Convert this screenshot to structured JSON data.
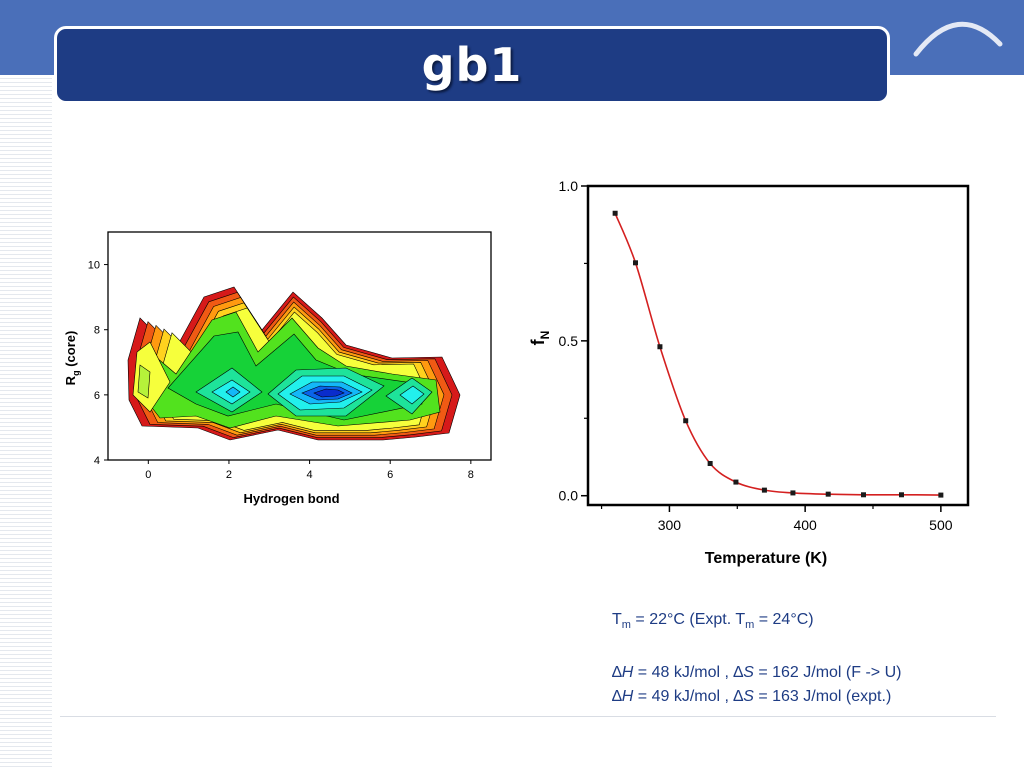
{
  "slide": {
    "title": "gb1",
    "colors": {
      "band": "#4a6fb9",
      "title_box": "#1e3c84",
      "text": "#1e3c84",
      "curve": "#d42020"
    }
  },
  "notes": {
    "tm_line": {
      "t": "T",
      "sub": "m",
      "mid": " = 22°C (Expt. T",
      "sub2": "m",
      "end": " = 24°C)"
    },
    "line1": {
      "d1": "∆",
      "h": "H",
      "a": " = 48 kJ/mol , ",
      "d2": "∆",
      "s": "S",
      "b": " = 162 J/mol (F -> U)"
    },
    "line2": {
      "d1": "∆",
      "h": "H",
      "a": " = 49 kJ/mol , ",
      "d2": "∆",
      "s": "S",
      "b": " = 163 J/mol (expt.)"
    }
  },
  "chart_data": [
    {
      "type": "contour",
      "xlabel": "Hydrogen bond",
      "ylabel": "R",
      "ylabel_sub": "g",
      "ylabel_rest": " (core)",
      "xlim": [
        -1,
        8.5
      ],
      "ylim": [
        4,
        11
      ],
      "xticks": [
        "0",
        "2",
        "4",
        "6",
        "8"
      ],
      "xtick_values": [
        0,
        2,
        4,
        6,
        8
      ],
      "yticks": [
        "4",
        "6",
        "8",
        "10"
      ],
      "ytick_values": [
        4,
        6,
        8,
        10
      ],
      "levels_colors": [
        "#d61a1a",
        "#f05a14",
        "#ff9a10",
        "#ffd21e",
        "#f6ff3c",
        "#b6f23a",
        "#52e21e",
        "#16d238",
        "#1ee39a",
        "#22f0ec",
        "#14b8f8",
        "#0a64ea",
        "#0a2ccc"
      ],
      "grid": false
    },
    {
      "type": "scatter",
      "xlabel": "Temperature (K)",
      "ylabel": "f",
      "ylabel_sub": "N",
      "xlim": [
        240,
        520
      ],
      "ylim": [
        -0.03,
        1.0
      ],
      "xticks": [
        "300",
        "400",
        "500"
      ],
      "xtick_values": [
        300,
        400,
        500
      ],
      "yticks": [
        "0.0",
        "0.5",
        "1.0"
      ],
      "ytick_values": [
        0.0,
        0.5,
        1.0
      ],
      "points": [
        [
          260,
          0.912
        ],
        [
          275,
          0.752
        ],
        [
          293,
          0.481
        ],
        [
          312,
          0.242
        ],
        [
          330,
          0.104
        ],
        [
          349,
          0.044
        ],
        [
          370,
          0.018
        ],
        [
          391,
          0.009
        ],
        [
          417,
          0.005
        ],
        [
          443,
          0.003
        ],
        [
          471,
          0.003
        ],
        [
          500,
          0.002
        ]
      ],
      "fit_curve": true,
      "grid": false
    }
  ]
}
